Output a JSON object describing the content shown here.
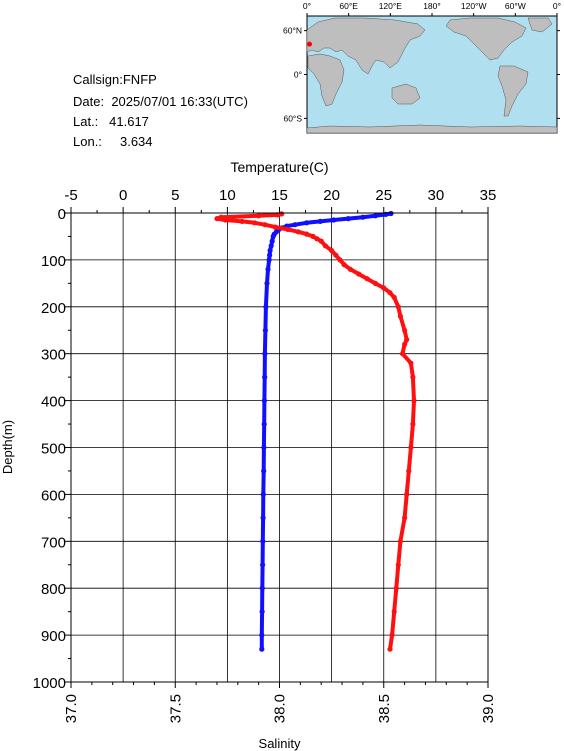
{
  "station": {
    "callsign_label": "Callsign:",
    "callsign": "FNFP",
    "date_label": "Date:",
    "date": "2025/07/01 16:33(UTC)",
    "lat_label": "Lat.:",
    "lat": "41.617",
    "lon_label": "Lon.:",
    "lon": "3.634"
  },
  "map": {
    "lon_ticks": [
      "0°",
      "60°E",
      "120°E",
      "180°",
      "120°W",
      "60°W",
      "0°"
    ],
    "lat_ticks": [
      "60°N",
      "0°",
      "60°S"
    ],
    "marker_color": "#ff0000",
    "ocean_color": "#b0e0f0",
    "land_color": "#bebebe"
  },
  "chart_data": {
    "type": "line",
    "temperature_axis": {
      "label": "Temperature(C)",
      "range": [
        -5,
        35
      ],
      "ticks": [
        "-5",
        "0",
        "5",
        "10",
        "15",
        "20",
        "25",
        "30",
        "35"
      ]
    },
    "salinity_axis": {
      "label": "Salinity",
      "range": [
        37.0,
        39.0
      ],
      "ticks": [
        "37.0",
        "37.5",
        "38.0",
        "38.5",
        "39.0"
      ]
    },
    "depth_axis": {
      "label": "Depth(m)",
      "range": [
        0,
        1000
      ],
      "inverted": true,
      "ticks": [
        "0",
        "100",
        "200",
        "300",
        "400",
        "500",
        "600",
        "700",
        "800",
        "900",
        "1000"
      ]
    },
    "grid": true,
    "series": [
      {
        "quantity": "temperature",
        "color": "#1010ff",
        "depth": [
          1,
          3,
          6,
          9,
          12,
          15,
          18,
          21,
          25,
          28,
          32,
          36,
          40,
          45,
          50,
          60,
          70,
          80,
          90,
          100,
          120,
          150,
          200,
          250,
          300,
          350,
          400,
          450,
          500,
          550,
          600,
          650,
          700,
          750,
          800,
          850,
          900,
          930
        ],
        "values": [
          25.7,
          25.2,
          24.2,
          23.0,
          21.6,
          20.2,
          18.9,
          17.6,
          16.5,
          15.7,
          15.2,
          14.9,
          14.7,
          14.5,
          14.4,
          14.3,
          14.2,
          14.1,
          14.05,
          14.0,
          13.9,
          13.8,
          13.7,
          13.65,
          13.6,
          13.58,
          13.55,
          13.53,
          13.5,
          13.48,
          13.45,
          13.43,
          13.4,
          13.38,
          13.35,
          13.33,
          13.3,
          13.3
        ]
      },
      {
        "quantity": "salinity",
        "color": "#ff1010",
        "depth": [
          2,
          4,
          6,
          9,
          12,
          15,
          18,
          21,
          25,
          30,
          35,
          40,
          45,
          50,
          55,
          60,
          70,
          80,
          90,
          100,
          110,
          120,
          130,
          140,
          150,
          160,
          170,
          180,
          200,
          220,
          250,
          270,
          280,
          300,
          320,
          350,
          400,
          450,
          500,
          550,
          600,
          650,
          700,
          750,
          800,
          850,
          900,
          930
        ],
        "values": [
          38.01,
          37.99,
          37.9,
          37.72,
          37.7,
          37.74,
          37.82,
          37.88,
          37.93,
          37.98,
          38.04,
          38.09,
          38.13,
          38.16,
          38.18,
          38.2,
          38.22,
          38.25,
          38.27,
          38.29,
          38.31,
          38.34,
          38.38,
          38.42,
          38.46,
          38.5,
          38.53,
          38.55,
          38.57,
          38.58,
          38.6,
          38.61,
          38.6,
          38.59,
          38.63,
          38.64,
          38.645,
          38.64,
          38.63,
          38.62,
          38.61,
          38.6,
          38.58,
          38.57,
          38.56,
          38.55,
          38.54,
          38.53
        ]
      }
    ]
  }
}
